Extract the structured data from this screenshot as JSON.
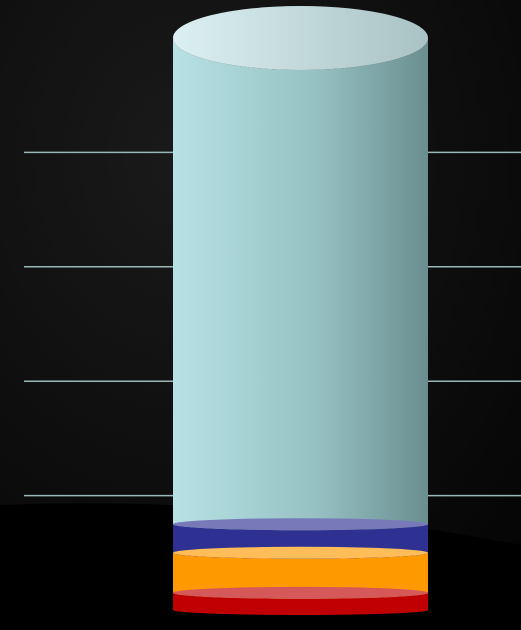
{
  "chart_data": {
    "type": "bar",
    "stacked": true,
    "style": "3d-cylinder",
    "categories": [
      ""
    ],
    "ylim": [
      0,
      100
    ],
    "grid": true,
    "legend": "none",
    "series": [
      {
        "values": [
          3
        ],
        "color": "#c00000"
      },
      {
        "values": [
          7
        ],
        "color": "#ff9900"
      },
      {
        "values": [
          5
        ],
        "color": "#2e3192"
      },
      {
        "values": [
          85
        ],
        "color": "#b0dde0"
      }
    ]
  },
  "colors": {
    "background": "#0a0a0a",
    "gridline": "#9ab8b8",
    "cylinder_top_light": "#d6eef0",
    "cylinder_shade_dark": "#6a8e90"
  }
}
